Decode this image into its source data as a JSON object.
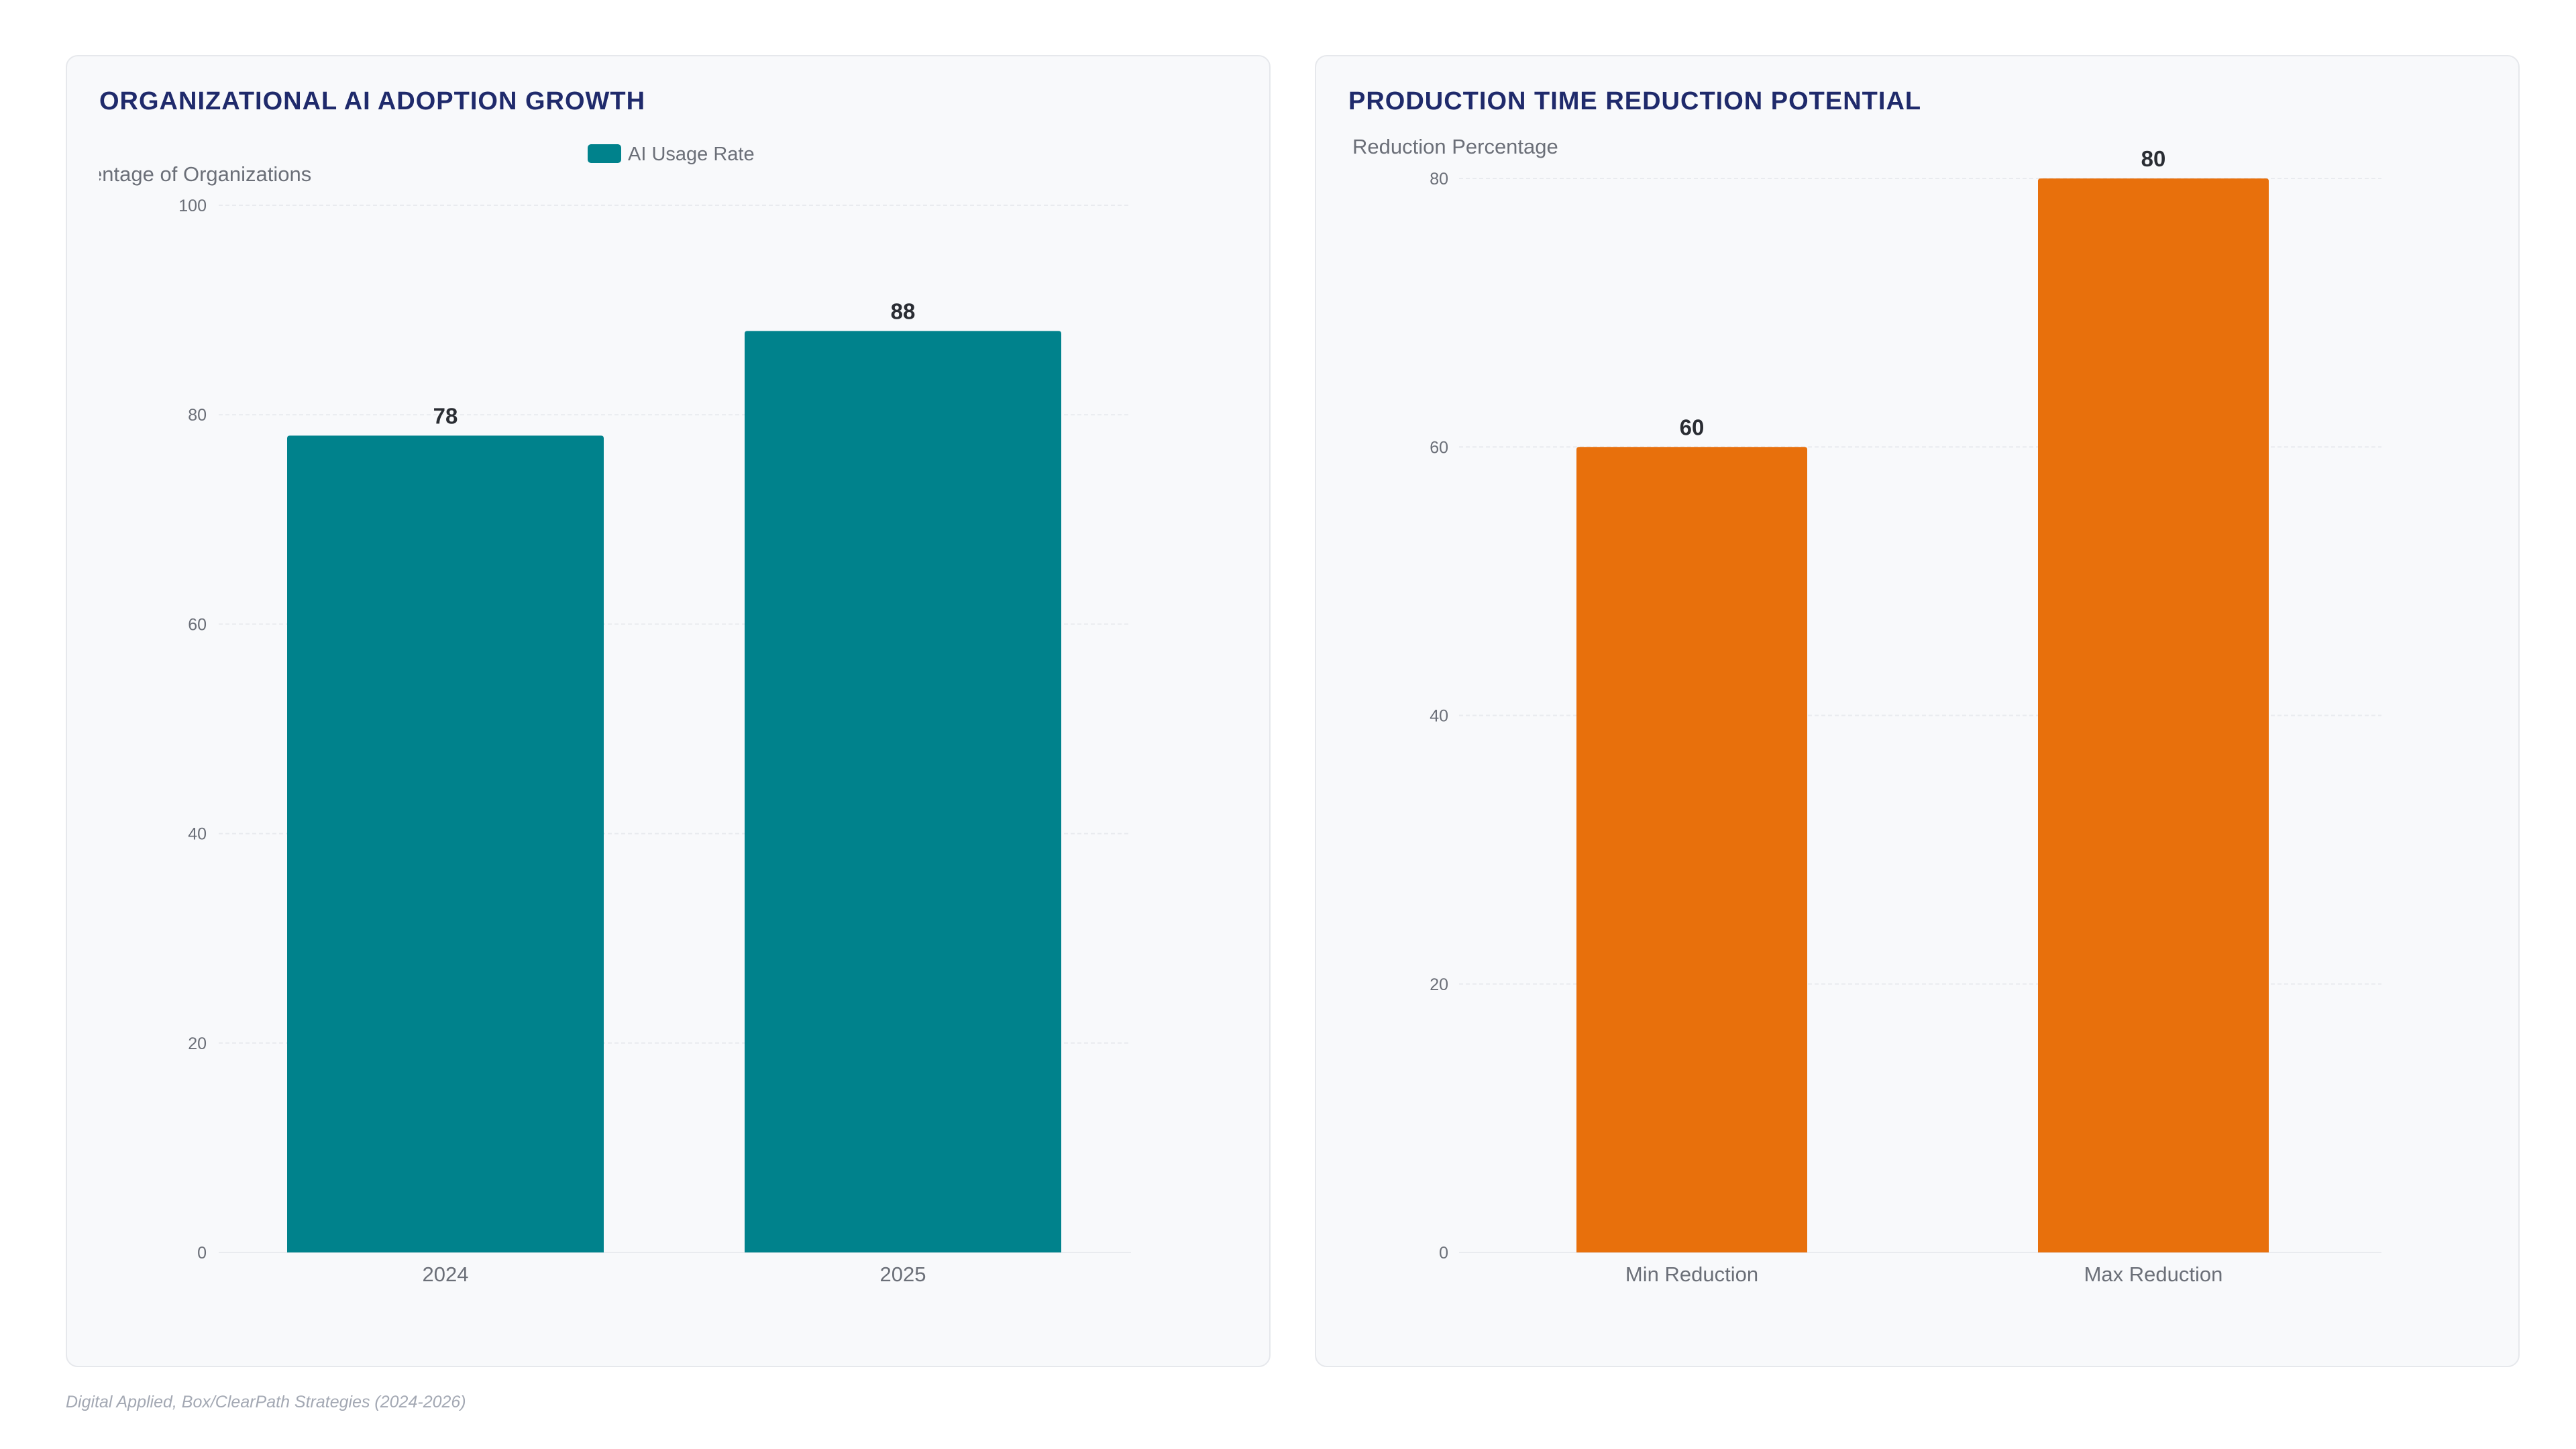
{
  "colors": {
    "teal": "#00828C",
    "orange": "#E8700C",
    "title": "#1f2a6b",
    "grid": "#e9ebef",
    "tick": "#6b6f78",
    "axis_label": "#6b6f78",
    "value_label": "#2a2d33"
  },
  "chart_data": [
    {
      "type": "bar",
      "title": "ORGANIZATIONAL AI ADOPTION GROWTH",
      "ylabel": "ercentage of Organizations",
      "xlabel": "",
      "categories": [
        "2024",
        "2025"
      ],
      "series": [
        {
          "name": "AI Usage Rate",
          "values": [
            78,
            88
          ],
          "color": "#00828C"
        }
      ],
      "ylim": [
        0,
        100
      ],
      "yticks": [
        0,
        20,
        40,
        60,
        80,
        100
      ],
      "grid": true,
      "legend": "top-center",
      "data_labels": true
    },
    {
      "type": "bar",
      "title": "PRODUCTION TIME REDUCTION POTENTIAL",
      "ylabel": "Reduction Percentage",
      "xlabel": "",
      "categories": [
        "Min Reduction",
        "Max Reduction"
      ],
      "series": [
        {
          "values": [
            60,
            80
          ],
          "color": "#E8700C"
        }
      ],
      "ylim": [
        0,
        80
      ],
      "yticks": [
        0,
        20,
        40,
        60,
        80
      ],
      "grid": true,
      "legend": "none",
      "data_labels": true
    }
  ],
  "footer": {
    "source": "Digital Applied, Box/ClearPath Strategies (2024-2026)"
  }
}
